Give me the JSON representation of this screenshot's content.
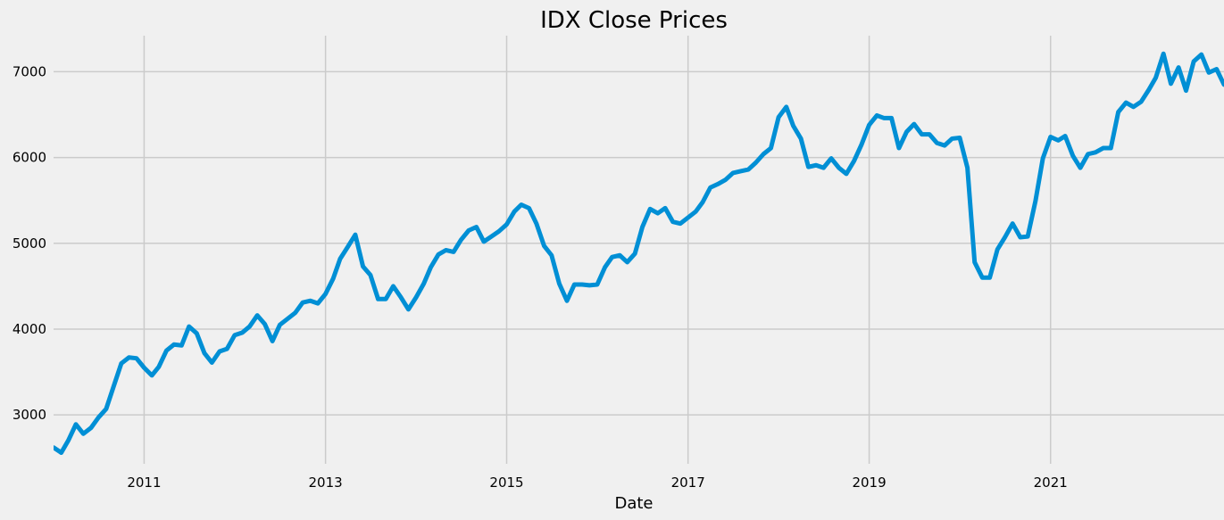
{
  "chart_data": {
    "type": "line",
    "title": "IDX Close Prices",
    "xlabel": "Date",
    "ylabel": "",
    "x_type": "date",
    "xlim": [
      "2010-01-01",
      "2022-12-01"
    ],
    "ylim": [
      2430,
      7420
    ],
    "grid": true,
    "legend": "none",
    "colors": {
      "background": "#f0f0f0",
      "grid": "#cbcbcb",
      "line": "#008fd5"
    },
    "x_ticks": [
      {
        "date": "2011-01-01",
        "label": "2011"
      },
      {
        "date": "2013-01-01",
        "label": "2013"
      },
      {
        "date": "2015-01-01",
        "label": "2015"
      },
      {
        "date": "2017-01-01",
        "label": "2017"
      },
      {
        "date": "2019-01-01",
        "label": "2019"
      },
      {
        "date": "2021-01-01",
        "label": "2021"
      }
    ],
    "y_ticks": [
      {
        "value": 3000,
        "label": "3000"
      },
      {
        "value": 4000,
        "label": "4000"
      },
      {
        "value": 5000,
        "label": "5000"
      },
      {
        "value": 6000,
        "label": "6000"
      },
      {
        "value": 7000,
        "label": "7000"
      }
    ],
    "series": [
      {
        "x": [
          "2010-01-01",
          "2010-02-01",
          "2010-03-01",
          "2010-04-01",
          "2010-05-01",
          "2010-06-01",
          "2010-07-01",
          "2010-08-01",
          "2010-09-01",
          "2010-10-01",
          "2010-11-01",
          "2010-12-01",
          "2011-01-01",
          "2011-02-01",
          "2011-03-01",
          "2011-04-01",
          "2011-05-01",
          "2011-06-01",
          "2011-07-01",
          "2011-08-01",
          "2011-09-01",
          "2011-10-01",
          "2011-11-01",
          "2011-12-01",
          "2012-01-01",
          "2012-02-01",
          "2012-03-01",
          "2012-04-01",
          "2012-05-01",
          "2012-06-01",
          "2012-07-01",
          "2012-08-01",
          "2012-09-01",
          "2012-10-01",
          "2012-11-01",
          "2012-12-01",
          "2013-01-01",
          "2013-02-01",
          "2013-03-01",
          "2013-04-01",
          "2013-05-01",
          "2013-06-01",
          "2013-07-01",
          "2013-08-01",
          "2013-09-01",
          "2013-10-01",
          "2013-11-01",
          "2013-12-01",
          "2014-01-01",
          "2014-02-01",
          "2014-03-01",
          "2014-04-01",
          "2014-05-01",
          "2014-06-01",
          "2014-07-01",
          "2014-08-01",
          "2014-09-01",
          "2014-10-01",
          "2014-11-01",
          "2014-12-01",
          "2015-01-01",
          "2015-02-01",
          "2015-03-01",
          "2015-04-01",
          "2015-05-01",
          "2015-06-01",
          "2015-07-01",
          "2015-08-01",
          "2015-09-01",
          "2015-10-01",
          "2015-11-01",
          "2015-12-01",
          "2016-01-01",
          "2016-02-01",
          "2016-03-01",
          "2016-04-01",
          "2016-05-01",
          "2016-06-01",
          "2016-07-01",
          "2016-08-01",
          "2016-09-01",
          "2016-10-01",
          "2016-11-01",
          "2016-12-01",
          "2017-01-01",
          "2017-02-01",
          "2017-03-01",
          "2017-04-01",
          "2017-05-01",
          "2017-06-01",
          "2017-07-01",
          "2017-08-01",
          "2017-09-01",
          "2017-10-01",
          "2017-11-01",
          "2017-12-01",
          "2018-01-01",
          "2018-02-01",
          "2018-03-01",
          "2018-04-01",
          "2018-05-01",
          "2018-06-01",
          "2018-07-01",
          "2018-08-01",
          "2018-09-01",
          "2018-10-01",
          "2018-11-01",
          "2018-12-01",
          "2019-01-01",
          "2019-02-01",
          "2019-03-01",
          "2019-04-01",
          "2019-05-01",
          "2019-06-01",
          "2019-07-01",
          "2019-08-01",
          "2019-09-01",
          "2019-10-01",
          "2019-11-01",
          "2019-12-01",
          "2020-01-01",
          "2020-02-01",
          "2020-03-01",
          "2020-04-01",
          "2020-05-01",
          "2020-06-01",
          "2020-07-01",
          "2020-08-01",
          "2020-09-01",
          "2020-10-01",
          "2020-11-01",
          "2020-12-01",
          "2021-01-01",
          "2021-02-01",
          "2021-03-01",
          "2021-04-01",
          "2021-05-01",
          "2021-06-01",
          "2021-07-01",
          "2021-08-01",
          "2021-09-01",
          "2021-10-01",
          "2021-11-01",
          "2021-12-01",
          "2022-01-01",
          "2022-02-01",
          "2022-03-01",
          "2022-04-01",
          "2022-05-01",
          "2022-06-01",
          "2022-07-01",
          "2022-08-01",
          "2022-09-01",
          "2022-10-01",
          "2022-11-01",
          "2022-12-01"
        ],
        "y": [
          2620,
          2560,
          2700,
          2890,
          2780,
          2850,
          2970,
          3070,
          3340,
          3600,
          3670,
          3660,
          3550,
          3460,
          3560,
          3750,
          3820,
          3810,
          4030,
          3950,
          3720,
          3610,
          3740,
          3770,
          3930,
          3960,
          4030,
          4160,
          4060,
          3860,
          4050,
          4120,
          4190,
          4310,
          4330,
          4300,
          4410,
          4590,
          4820,
          4960,
          5100,
          4730,
          4630,
          4350,
          4350,
          4500,
          4370,
          4230,
          4370,
          4530,
          4720,
          4870,
          4920,
          4900,
          5040,
          5150,
          5190,
          5020,
          5080,
          5140,
          5220,
          5370,
          5450,
          5410,
          5230,
          4970,
          4860,
          4530,
          4330,
          4520,
          4520,
          4510,
          4520,
          4720,
          4840,
          4860,
          4780,
          4880,
          5190,
          5400,
          5350,
          5410,
          5250,
          5230,
          5300,
          5370,
          5480,
          5650,
          5690,
          5740,
          5820,
          5840,
          5860,
          5940,
          6040,
          6110,
          6470,
          6590,
          6370,
          6220,
          5890,
          5910,
          5880,
          5990,
          5880,
          5810,
          5960,
          6150,
          6380,
          6490,
          6460,
          6460,
          6110,
          6300,
          6390,
          6270,
          6270,
          6170,
          6140,
          6220,
          6230,
          5880,
          4780,
          4600,
          4600,
          4930,
          5070,
          5230,
          5070,
          5080,
          5490,
          5990,
          6240,
          6200,
          6250,
          6020,
          5880,
          6040,
          6060,
          6110,
          6110,
          6530,
          6640,
          6590,
          6650,
          6790,
          6930,
          7210,
          6860,
          7050,
          6780,
          7120,
          7200,
          6990,
          7030,
          6850
        ]
      }
    ]
  }
}
